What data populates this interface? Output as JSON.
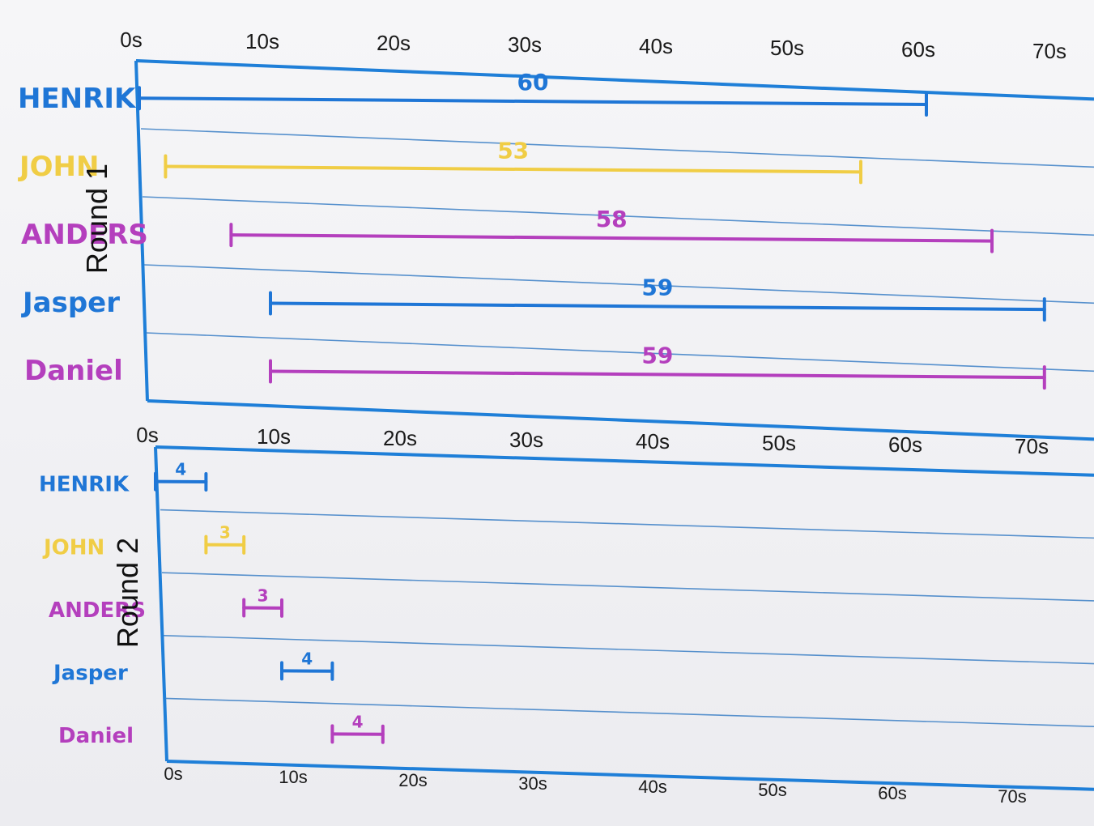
{
  "colors": {
    "axis": "#1f7fd8",
    "grid": "#3b7fc6",
    "blue": "#1f76d6",
    "yellow": "#f0cd45",
    "magenta": "#b43fbd"
  },
  "chart_data": [
    {
      "type": "gantt",
      "round_label": "Round 1",
      "x_ticks": [
        "0s",
        "10s",
        "20s",
        "30s",
        "40s",
        "50s",
        "60s",
        "70s"
      ],
      "xlim": [
        0,
        70
      ],
      "series": [
        {
          "name": "HENRIK",
          "color": "blue",
          "start": 0,
          "end": 60,
          "label": "60"
        },
        {
          "name": "JOHN",
          "color": "yellow",
          "start": 2,
          "end": 55,
          "label": "53"
        },
        {
          "name": "ANDERS",
          "color": "magenta",
          "start": 7,
          "end": 65,
          "label": "58"
        },
        {
          "name": "Jasper",
          "color": "blue",
          "start": 10,
          "end": 69,
          "label": "59"
        },
        {
          "name": "Daniel",
          "color": "magenta",
          "start": 10,
          "end": 69,
          "label": "59"
        }
      ]
    },
    {
      "type": "gantt",
      "round_label": "Round 2",
      "x_ticks": [
        "0s",
        "10s",
        "20s",
        "30s",
        "40s",
        "50s",
        "60s",
        "70s"
      ],
      "xlim": [
        0,
        70
      ],
      "series": [
        {
          "name": "HENRIK",
          "color": "blue",
          "start": 0,
          "end": 4,
          "label": "4"
        },
        {
          "name": "JOHN",
          "color": "yellow",
          "start": 4,
          "end": 7,
          "label": "3"
        },
        {
          "name": "ANDERS",
          "color": "magenta",
          "start": 7,
          "end": 10,
          "label": "3"
        },
        {
          "name": "Jasper",
          "color": "blue",
          "start": 10,
          "end": 14,
          "label": "4"
        },
        {
          "name": "Daniel",
          "color": "magenta",
          "start": 14,
          "end": 18,
          "label": "4"
        }
      ]
    }
  ]
}
